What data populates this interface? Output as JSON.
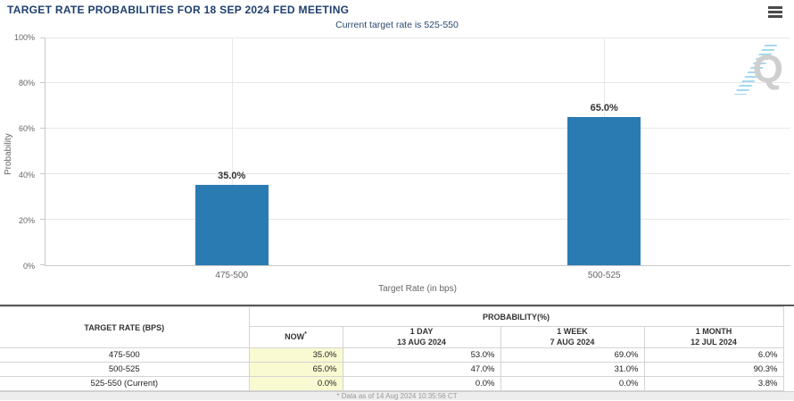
{
  "chart_data": {
    "type": "bar",
    "title": "TARGET RATE PROBABILITIES FOR 18 SEP 2024 FED MEETING",
    "subtitle": "Current target rate is 525-550",
    "categories": [
      "475-500",
      "500-525"
    ],
    "values": [
      35.0,
      65.0
    ],
    "value_labels": [
      "35.0%",
      "65.0%"
    ],
    "xlabel": "Target Rate (in bps)",
    "ylabel": "Probability",
    "ylim": [
      0,
      100
    ],
    "ytick_labels": [
      "0%",
      "20%",
      "40%",
      "60%",
      "80%",
      "100%"
    ],
    "grid": true,
    "legend_position": "none",
    "bar_color": "#2b7bb3",
    "watermark_icon": "q-logo-watermark"
  },
  "header": {
    "menu_icon": "hamburger-menu-icon"
  },
  "table": {
    "col1_header": "TARGET RATE (BPS)",
    "group_header": "PROBABILITY(%)",
    "sub_headers": [
      {
        "line1": "NOW",
        "sup": "*",
        "line2": ""
      },
      {
        "line1": "1 DAY",
        "line2": "13 AUG 2024"
      },
      {
        "line1": "1 WEEK",
        "line2": "7 AUG 2024"
      },
      {
        "line1": "1 MONTH",
        "line2": "12 JUL 2024"
      }
    ],
    "rows": [
      {
        "label": "475-500",
        "now": "35.0%",
        "day": "53.0%",
        "week": "69.0%",
        "month": "6.0%"
      },
      {
        "label": "500-525",
        "now": "65.0%",
        "day": "47.0%",
        "week": "31.0%",
        "month": "90.3%"
      },
      {
        "label": "525-550 (Current)",
        "now": "0.0%",
        "day": "0.0%",
        "week": "0.0%",
        "month": "3.8%"
      }
    ],
    "footnote": "* Data as of 14 Aug 2024 10:35:56 CT",
    "highlight_color": "#fafad2"
  },
  "colors": {
    "title_navy": "#1e3f6e",
    "subtitle_navy": "#27496d",
    "bar_blue": "#2b7bb3",
    "now_highlight": "#fafad2",
    "axis_text": "#666666",
    "grid_line": "#e8e8e8",
    "table_border": "#d4d4d4",
    "table_top_border": "#59595b",
    "footnote_bg": "#ededed"
  }
}
